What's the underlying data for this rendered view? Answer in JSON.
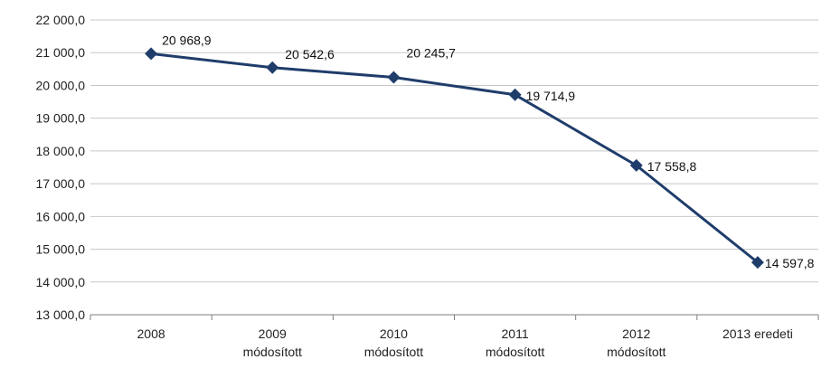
{
  "chart_data": {
    "type": "line",
    "categories": [
      [
        "2008"
      ],
      [
        "2009",
        "módosított"
      ],
      [
        "2010",
        "módosított"
      ],
      [
        "2011",
        "módosított"
      ],
      [
        "2012",
        "módosított"
      ],
      [
        "2013 eredeti"
      ]
    ],
    "series": [
      {
        "values": [
          20968.9,
          20542.6,
          20245.7,
          19714.9,
          17558.8,
          14597.8
        ],
        "value_labels": [
          "20 968,9",
          "20 542,6",
          "20 245,7",
          "19 714,9",
          "17 558,8",
          "14 597,8"
        ]
      }
    ],
    "ylim": [
      13000,
      22000
    ],
    "yticks": [
      {
        "value": 22000,
        "label": "22 000,0"
      },
      {
        "value": 21000,
        "label": "21 000,0"
      },
      {
        "value": 20000,
        "label": "20 000,0"
      },
      {
        "value": 19000,
        "label": "19 000,0"
      },
      {
        "value": 18000,
        "label": "18 000,0"
      },
      {
        "value": 17000,
        "label": "17 000,0"
      },
      {
        "value": 16000,
        "label": "16 000,0"
      },
      {
        "value": 15000,
        "label": "15 000,0"
      },
      {
        "value": 14000,
        "label": "14 000,0"
      },
      {
        "value": 13000,
        "label": "13 000,0"
      }
    ],
    "grid": true,
    "legend": "none",
    "marker": "diamond",
    "colors": {
      "series": "#1f3d6b",
      "grid": "#c8c8c8",
      "axis": "#7f7f7f"
    }
  }
}
